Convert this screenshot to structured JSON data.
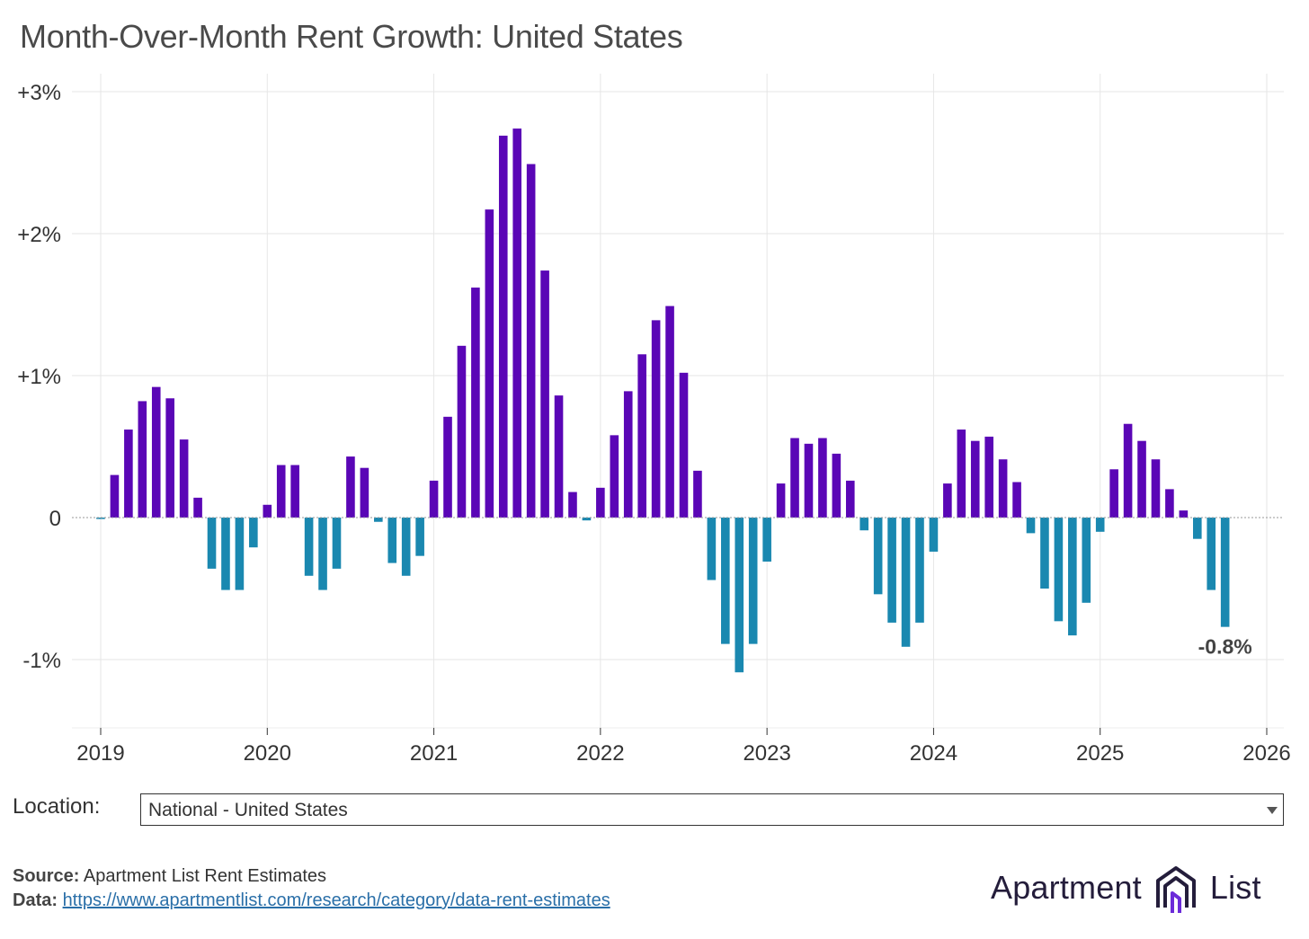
{
  "title": "Month-Over-Month Rent Growth: United States",
  "location": {
    "label": "Location:",
    "selected": "National - United States"
  },
  "source": {
    "label": "Source:",
    "text": "Apartment List Rent Estimates"
  },
  "data_source": {
    "label": "Data:",
    "url": "https://www.apartmentlist.com/research/category/data-rent-estimates"
  },
  "logo": {
    "left_word": "Apartment",
    "right_word": "List"
  },
  "colors": {
    "positive": "#5a06b6",
    "negative": "#1a88b0",
    "grid": "#e6e6e6",
    "zero_line": "#9a9a9a",
    "logo_purple": "#6c2bd9",
    "logo_dark": "#241d3b"
  },
  "chart_data": {
    "type": "bar",
    "title": "Month-Over-Month Rent Growth: United States",
    "xlabel": "",
    "ylabel": "",
    "ylim": [
      -1.5,
      3.05
    ],
    "xlim": [
      "2019-01",
      "2026-01"
    ],
    "grid": true,
    "legend": "none",
    "y_ticks": [
      3,
      2,
      1,
      0,
      -1
    ],
    "y_tick_labels": [
      "+3%",
      "+2%",
      "+1%",
      "0",
      "-1%"
    ],
    "x_tick_labels": [
      "2019",
      "2020",
      "2021",
      "2022",
      "2023",
      "2024",
      "2025",
      "2026"
    ],
    "annotation": {
      "text": "-0.8%",
      "month": "2025-10"
    },
    "x": [
      "2019-01",
      "2019-02",
      "2019-03",
      "2019-04",
      "2019-05",
      "2019-06",
      "2019-07",
      "2019-08",
      "2019-09",
      "2019-10",
      "2019-11",
      "2019-12",
      "2020-01",
      "2020-02",
      "2020-03",
      "2020-04",
      "2020-05",
      "2020-06",
      "2020-07",
      "2020-08",
      "2020-09",
      "2020-10",
      "2020-11",
      "2020-12",
      "2021-01",
      "2021-02",
      "2021-03",
      "2021-04",
      "2021-05",
      "2021-06",
      "2021-07",
      "2021-08",
      "2021-09",
      "2021-10",
      "2021-11",
      "2021-12",
      "2022-01",
      "2022-02",
      "2022-03",
      "2022-04",
      "2022-05",
      "2022-06",
      "2022-07",
      "2022-08",
      "2022-09",
      "2022-10",
      "2022-11",
      "2022-12",
      "2023-01",
      "2023-02",
      "2023-03",
      "2023-04",
      "2023-05",
      "2023-06",
      "2023-07",
      "2023-08",
      "2023-09",
      "2023-10",
      "2023-11",
      "2023-12",
      "2024-01",
      "2024-02",
      "2024-03",
      "2024-04",
      "2024-05",
      "2024-06",
      "2024-07",
      "2024-08",
      "2024-09",
      "2024-10",
      "2024-11",
      "2024-12",
      "2025-01",
      "2025-02",
      "2025-03",
      "2025-04",
      "2025-05",
      "2025-06",
      "2025-07",
      "2025-08",
      "2025-09",
      "2025-10"
    ],
    "values": [
      -0.01,
      0.3,
      0.62,
      0.82,
      0.92,
      0.84,
      0.55,
      0.14,
      -0.36,
      -0.51,
      -0.51,
      -0.21,
      0.09,
      0.37,
      0.37,
      -0.41,
      -0.51,
      -0.36,
      0.43,
      0.35,
      -0.03,
      -0.32,
      -0.41,
      -0.27,
      0.26,
      0.71,
      1.21,
      1.62,
      2.17,
      2.69,
      2.74,
      2.49,
      1.74,
      0.86,
      0.18,
      -0.02,
      0.21,
      0.58,
      0.89,
      1.15,
      1.39,
      1.49,
      1.02,
      0.33,
      -0.44,
      -0.89,
      -1.09,
      -0.89,
      -0.31,
      0.24,
      0.56,
      0.52,
      0.56,
      0.45,
      0.26,
      -0.09,
      -0.54,
      -0.74,
      -0.91,
      -0.74,
      -0.24,
      0.24,
      0.62,
      0.54,
      0.57,
      0.41,
      0.25,
      -0.11,
      -0.5,
      -0.73,
      -0.83,
      -0.6,
      -0.1,
      0.34,
      0.66,
      0.54,
      0.41,
      0.2,
      0.05,
      -0.15,
      -0.51,
      -0.77
    ]
  }
}
